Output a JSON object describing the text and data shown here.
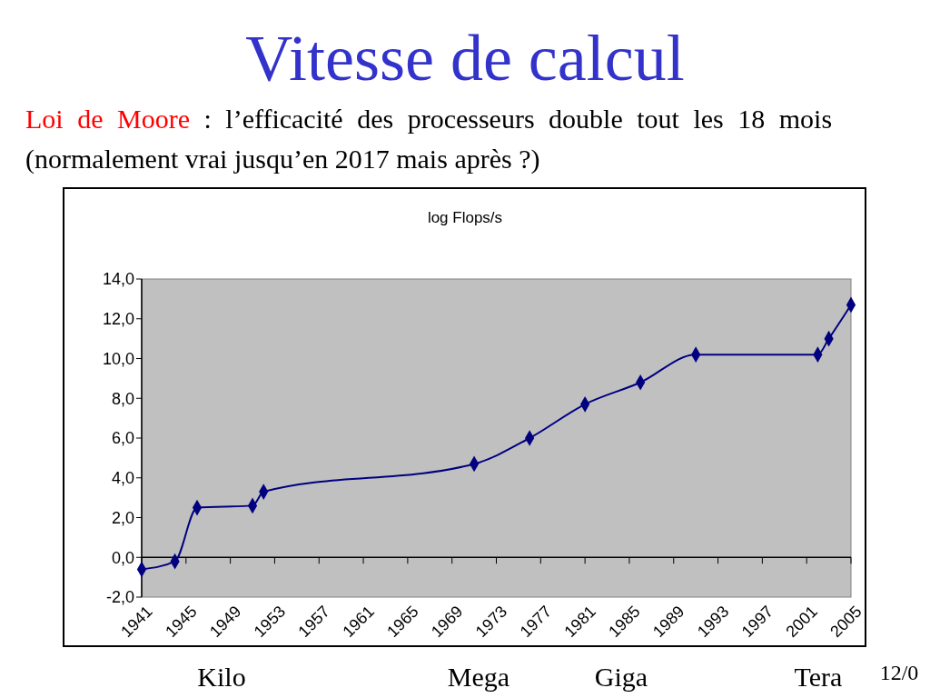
{
  "chart_data": {
    "type": "line",
    "title": "Vitesse de calcul",
    "subtitle": "log Flops/s",
    "annotations": [
      "Loi de Moore",
      " : l’efficacité des processeurs double tout les 18 mois",
      "(normalement vrai jusqu’en 2017 mais après ?)",
      "Kilo",
      "Mega",
      "Giga",
      "Tera",
      "12/0"
    ],
    "x": [
      1941,
      1944,
      1946,
      1951,
      1952,
      1971,
      1976,
      1981,
      1986,
      1991,
      2002,
      2003,
      2005
    ],
    "series": [
      {
        "color": "#000080",
        "values": [
          -0.6,
          -0.2,
          2.5,
          2.6,
          3.3,
          4.7,
          6.0,
          7.7,
          8.8,
          10.2,
          10.2,
          11.0,
          12.7
        ]
      }
    ],
    "xlim": [
      1941,
      2005
    ],
    "xticks": [
      1941,
      1945,
      1949,
      1953,
      1957,
      1961,
      1965,
      1969,
      1973,
      1977,
      1981,
      1985,
      1989,
      1993,
      1997,
      2001,
      2005
    ],
    "ylim": [
      -2,
      14
    ],
    "yticks": [
      {
        "value": -2,
        "label": "-2,0"
      },
      {
        "value": 0,
        "label": "0,0"
      },
      {
        "value": 2,
        "label": "2,0"
      },
      {
        "value": 4,
        "label": "4,0"
      },
      {
        "value": 6,
        "label": "6,0"
      },
      {
        "value": 8,
        "label": "8,0"
      },
      {
        "value": 10,
        "label": "10,0"
      },
      {
        "value": 12,
        "label": "12,0"
      },
      {
        "value": 14,
        "label": "14,0"
      }
    ],
    "marker": "diamond"
  }
}
